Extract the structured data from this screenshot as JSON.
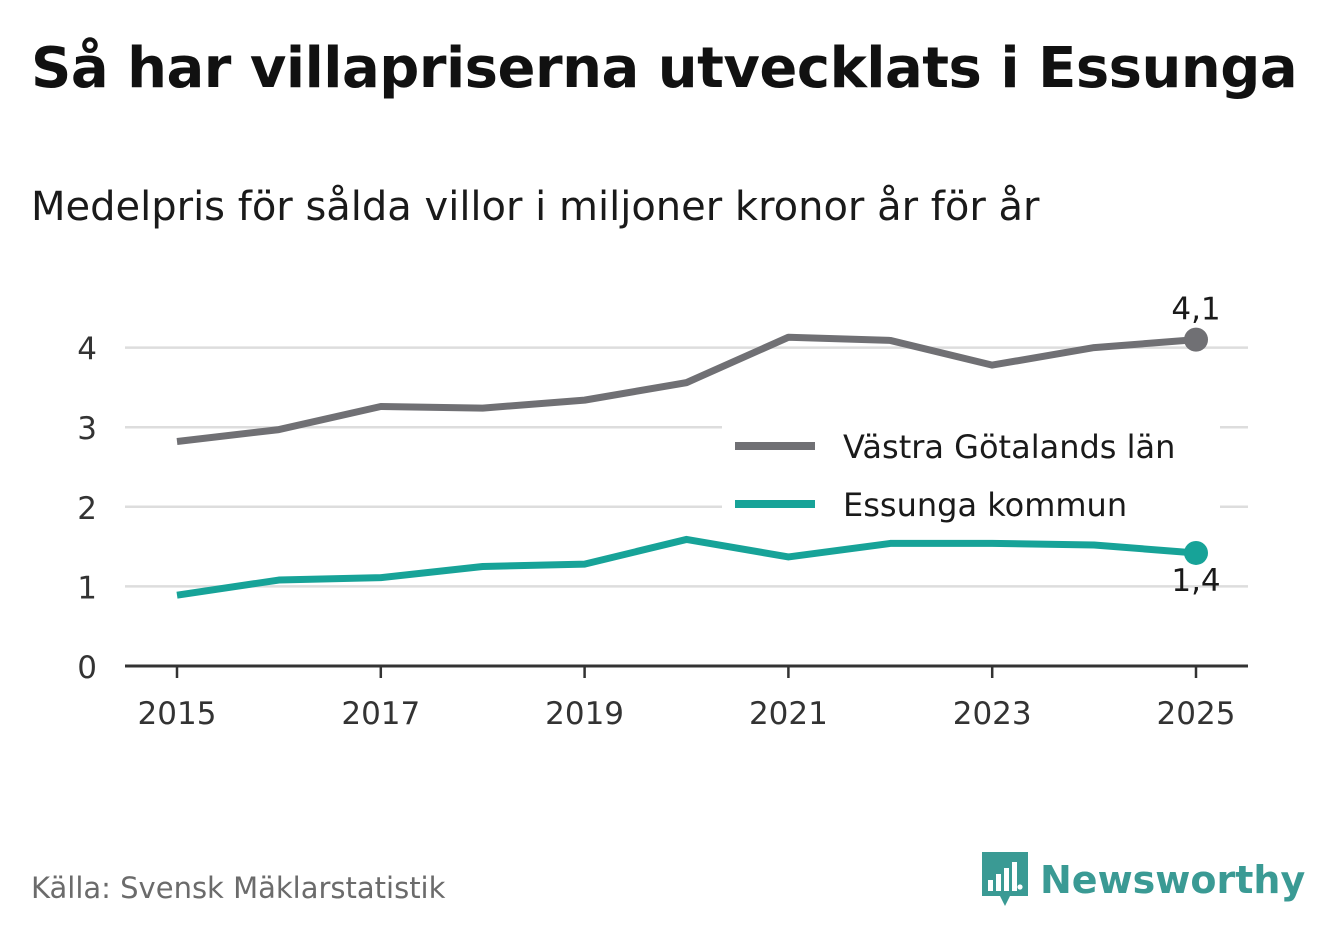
{
  "header": {
    "title": "Så har villapriserna utvecklats i Essunga",
    "subtitle": "Medelpris för sålda villor i miljoner kronor år för år"
  },
  "footer": {
    "source": "Källa: Svensk Mäklarstatistik",
    "brand": "Newsworthy",
    "brand_icon": "bar-chart-speech-bubble-icon"
  },
  "colors": {
    "series_region": "#707074",
    "series_municipality": "#17a398",
    "grid": "#dddddd",
    "axis": "#333333",
    "brand": "#3a9a94"
  },
  "chart_data": {
    "type": "line",
    "title": "Så har villapriserna utvecklats i Essunga",
    "subtitle": "Medelpris för sålda villor i miljoner kronor år för år",
    "xlabel": "",
    "ylabel": "",
    "x": [
      2015,
      2016,
      2017,
      2018,
      2019,
      2020,
      2021,
      2022,
      2023,
      2024,
      2025
    ],
    "xticks": [
      "2015",
      "2017",
      "2019",
      "2021",
      "2023",
      "2025"
    ],
    "yticks": [
      "0",
      "1",
      "2",
      "3",
      "4"
    ],
    "ylim": [
      0,
      4.4
    ],
    "grid": true,
    "legend_position": "right-middle",
    "series": [
      {
        "name": "Västra Götalands län",
        "color": "#707074",
        "values": [
          2.82,
          2.97,
          3.26,
          3.24,
          3.34,
          3.56,
          4.13,
          4.09,
          3.78,
          4.0,
          4.1
        ],
        "end_label": "4,1"
      },
      {
        "name": "Essunga kommun",
        "color": "#17a398",
        "values": [
          0.89,
          1.08,
          1.11,
          1.25,
          1.28,
          1.59,
          1.37,
          1.54,
          1.54,
          1.52,
          1.42
        ],
        "end_label": "1,4"
      }
    ]
  }
}
